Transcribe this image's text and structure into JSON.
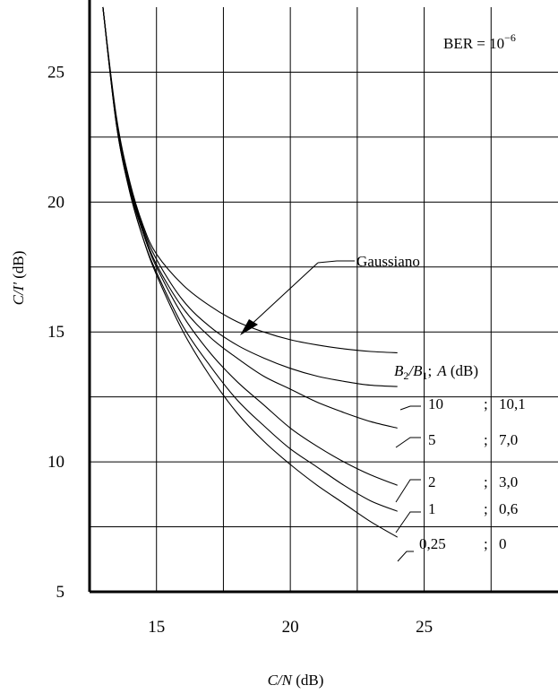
{
  "chart_data": {
    "type": "line",
    "annotation": "BER = 10",
    "annotation_exp": "−6",
    "xlabel": {
      "var": "C/N",
      "unit": " (dB)"
    },
    "ylabel": {
      "var": "C/I'",
      "unit": " (dB)"
    },
    "xlim": [
      12.5,
      30
    ],
    "ylim": [
      5,
      27.5
    ],
    "xticks": [
      "15",
      "20",
      "25"
    ],
    "yticks": [
      "5",
      "10",
      "15",
      "20",
      "25"
    ],
    "grid": true,
    "gaussian_label": "Gaussiano",
    "legend_header": {
      "b2": "B",
      "sub2": "2",
      "b1": "/B",
      "sub1": "1",
      "sep": ";",
      "a": "A",
      "unit": " (dB)"
    },
    "legend_rows": [
      {
        "ratio": "10",
        "sep": ";",
        "a": "10,1"
      },
      {
        "ratio": "5",
        "sep": ";",
        "a": "7,0"
      },
      {
        "ratio": "2",
        "sep": ";",
        "a": "3,0"
      },
      {
        "ratio": "1",
        "sep": ";",
        "a": "0,6"
      },
      {
        "ratio": "0,25",
        "sep": ";",
        "a": "0"
      }
    ],
    "series": [
      {
        "label": "Gaussiano",
        "points": [
          [
            13.0,
            27.5
          ],
          [
            13.5,
            23.3
          ],
          [
            14.0,
            20.8
          ],
          [
            14.5,
            19.1
          ],
          [
            15.0,
            18.0
          ],
          [
            16.0,
            16.8
          ],
          [
            17.0,
            16.0
          ],
          [
            18.0,
            15.4
          ],
          [
            19.0,
            15.0
          ],
          [
            20.0,
            14.7
          ],
          [
            21.0,
            14.5
          ],
          [
            22.0,
            14.35
          ],
          [
            23.0,
            14.25
          ],
          [
            24.0,
            14.2
          ]
        ]
      },
      {
        "label": "10 ; 10,1",
        "points": [
          [
            13.0,
            27.5
          ],
          [
            13.5,
            23.2
          ],
          [
            14.0,
            20.7
          ],
          [
            14.5,
            19.0
          ],
          [
            15.0,
            17.8
          ],
          [
            16.0,
            16.2
          ],
          [
            17.0,
            15.2
          ],
          [
            18.0,
            14.5
          ],
          [
            19.0,
            14.0
          ],
          [
            20.0,
            13.6
          ],
          [
            21.0,
            13.3
          ],
          [
            22.0,
            13.1
          ],
          [
            23.0,
            12.95
          ],
          [
            24.0,
            12.9
          ]
        ]
      },
      {
        "label": "5 ; 7,0",
        "points": [
          [
            13.0,
            27.5
          ],
          [
            13.5,
            23.1
          ],
          [
            14.0,
            20.6
          ],
          [
            14.5,
            18.9
          ],
          [
            15.0,
            17.6
          ],
          [
            16.0,
            15.9
          ],
          [
            17.0,
            14.8
          ],
          [
            18.0,
            14.0
          ],
          [
            19.0,
            13.3
          ],
          [
            20.0,
            12.8
          ],
          [
            21.0,
            12.3
          ],
          [
            22.0,
            11.9
          ],
          [
            23.0,
            11.55
          ],
          [
            24.0,
            11.3
          ]
        ]
      },
      {
        "label": "2 ; 3,0",
        "points": [
          [
            13.0,
            27.5
          ],
          [
            13.5,
            23.1
          ],
          [
            14.0,
            20.5
          ],
          [
            14.5,
            18.8
          ],
          [
            15.0,
            17.5
          ],
          [
            16.0,
            15.6
          ],
          [
            17.0,
            14.2
          ],
          [
            18.0,
            13.1
          ],
          [
            19.0,
            12.2
          ],
          [
            20.0,
            11.3
          ],
          [
            21.0,
            10.6
          ],
          [
            22.0,
            10.0
          ],
          [
            23.0,
            9.5
          ],
          [
            24.0,
            9.1
          ]
        ]
      },
      {
        "label": "1 ; 0,6",
        "points": [
          [
            13.0,
            27.5
          ],
          [
            13.5,
            23.0
          ],
          [
            14.0,
            20.4
          ],
          [
            14.5,
            18.6
          ],
          [
            15.0,
            17.3
          ],
          [
            16.0,
            15.2
          ],
          [
            17.0,
            13.7
          ],
          [
            18.0,
            12.4
          ],
          [
            19.0,
            11.4
          ],
          [
            20.0,
            10.5
          ],
          [
            21.0,
            9.8
          ],
          [
            22.0,
            9.1
          ],
          [
            23.0,
            8.5
          ],
          [
            24.0,
            8.1
          ]
        ]
      },
      {
        "label": "0,25 ; 0",
        "points": [
          [
            13.0,
            27.5
          ],
          [
            13.5,
            23.0
          ],
          [
            14.0,
            20.4
          ],
          [
            14.5,
            18.6
          ],
          [
            15.0,
            17.2
          ],
          [
            16.0,
            15.0
          ],
          [
            17.0,
            13.3
          ],
          [
            18.0,
            11.9
          ],
          [
            19.0,
            10.8
          ],
          [
            20.0,
            9.9
          ],
          [
            21.0,
            9.1
          ],
          [
            22.0,
            8.4
          ],
          [
            23.0,
            7.7
          ],
          [
            24.0,
            7.1
          ]
        ]
      }
    ]
  }
}
